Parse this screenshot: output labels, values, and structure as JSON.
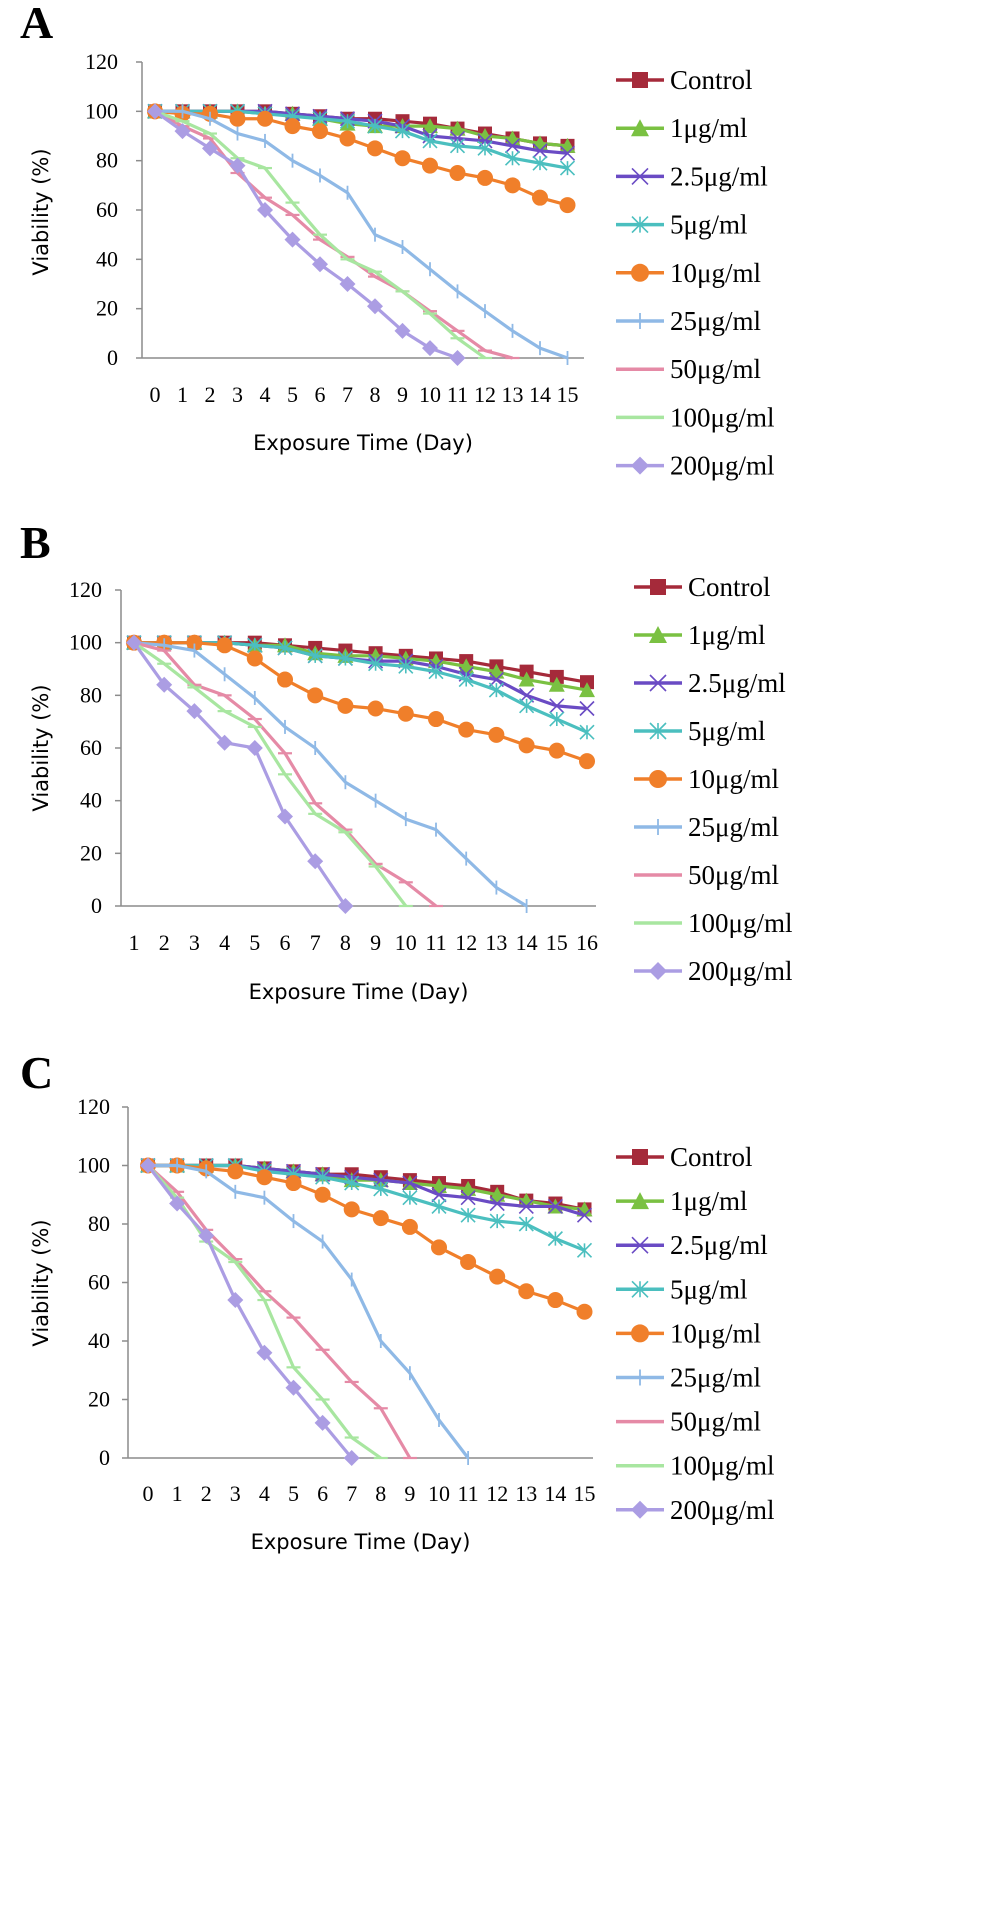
{
  "chart_data": [
    {
      "type": "line",
      "panel_label": "A",
      "xlabel": "Exposure Time (Day)",
      "ylabel": "Viability (%)",
      "ylim": [
        0,
        120
      ],
      "yticks": [
        "0",
        "20",
        "40",
        "60",
        "80",
        "100",
        "120"
      ],
      "xticks": [
        "0",
        "1",
        "2",
        "3",
        "4",
        "5",
        "6",
        "7",
        "8",
        "9",
        "10",
        "11",
        "12",
        "13",
        "14",
        "15"
      ],
      "x": [
        0,
        1,
        2,
        3,
        4,
        5,
        6,
        7,
        8,
        9,
        10,
        11,
        12,
        13,
        14,
        15
      ],
      "legend_position": "right",
      "series": [
        {
          "name": "Control",
          "color": "#a52a3a",
          "marker": "square",
          "values": [
            100,
            100,
            100,
            100,
            100,
            99,
            98,
            97,
            97,
            96,
            95,
            93,
            91,
            89,
            87,
            86
          ]
        },
        {
          "name": "1μg/ml",
          "color": "#7ac142",
          "marker": "triangle",
          "values": [
            100,
            100,
            100,
            100,
            99,
            99,
            97,
            95,
            94,
            94,
            94,
            93,
            90,
            89,
            87,
            86
          ]
        },
        {
          "name": "2.5μg/ml",
          "color": "#6a4bc4",
          "marker": "x",
          "values": [
            100,
            100,
            100,
            100,
            100,
            99,
            98,
            97,
            96,
            94,
            90,
            89,
            88,
            86,
            84,
            83
          ]
        },
        {
          "name": "5μg/ml",
          "color": "#4bbfbf",
          "marker": "star",
          "values": [
            100,
            100,
            100,
            100,
            99,
            98,
            97,
            96,
            94,
            92,
            88,
            86,
            85,
            81,
            79,
            77
          ]
        },
        {
          "name": "10μg/ml",
          "color": "#f07f2a",
          "marker": "circle",
          "values": [
            100,
            99,
            99,
            97,
            97,
            94,
            92,
            89,
            85,
            81,
            78,
            75,
            73,
            70,
            65,
            62
          ]
        },
        {
          "name": "25μg/ml",
          "color": "#8fb9e6",
          "marker": "plus",
          "values": [
            100,
            100,
            97,
            91,
            88,
            80,
            74,
            67,
            50,
            45,
            36,
            27,
            19,
            11,
            4,
            0
          ]
        },
        {
          "name": "50μg/ml",
          "color": "#e58aa6",
          "marker": "dash",
          "values": [
            100,
            94,
            89,
            75,
            65,
            58,
            48,
            41,
            33,
            27,
            19,
            11,
            3,
            0,
            null,
            null
          ]
        },
        {
          "name": "100μg/ml",
          "color": "#a8e6a0",
          "marker": "dash",
          "values": [
            100,
            96,
            91,
            81,
            77,
            63,
            50,
            40,
            35,
            27,
            18,
            8,
            0,
            null,
            null,
            null
          ]
        },
        {
          "name": "200μg/ml",
          "color": "#ab9de3",
          "marker": "diamond",
          "values": [
            100,
            92,
            85,
            78,
            60,
            48,
            38,
            30,
            21,
            11,
            4,
            0,
            null,
            null,
            null,
            null
          ]
        }
      ]
    },
    {
      "type": "line",
      "panel_label": "B",
      "xlabel": "Exposure Time (Day)",
      "ylabel": "Viability (%)",
      "ylim": [
        0,
        120
      ],
      "yticks": [
        "0",
        "20",
        "40",
        "60",
        "80",
        "100",
        "120"
      ],
      "xticks": [
        "1",
        "2",
        "3",
        "4",
        "5",
        "6",
        "7",
        "8",
        "9",
        "10",
        "11",
        "12",
        "13",
        "14",
        "15",
        "16"
      ],
      "x": [
        1,
        2,
        3,
        4,
        5,
        6,
        7,
        8,
        9,
        10,
        11,
        12,
        13,
        14,
        15,
        16
      ],
      "legend_position": "right",
      "series": [
        {
          "name": "Control",
          "color": "#a52a3a",
          "marker": "square",
          "values": [
            100,
            100,
            100,
            100,
            100,
            99,
            98,
            97,
            96,
            95,
            94,
            93,
            91,
            89,
            87,
            85
          ]
        },
        {
          "name": "1μg/ml",
          "color": "#7ac142",
          "marker": "triangle",
          "values": [
            100,
            100,
            100,
            100,
            99,
            99,
            96,
            95,
            95,
            94,
            93,
            91,
            89,
            86,
            84,
            82
          ]
        },
        {
          "name": "2.5μg/ml",
          "color": "#6a4bc4",
          "marker": "x",
          "values": [
            100,
            100,
            100,
            100,
            99,
            98,
            95,
            94,
            93,
            93,
            91,
            88,
            86,
            80,
            76,
            75
          ]
        },
        {
          "name": "5μg/ml",
          "color": "#4bbfbf",
          "marker": "star",
          "values": [
            100,
            100,
            100,
            100,
            99,
            98,
            95,
            94,
            92,
            91,
            89,
            86,
            82,
            76,
            71,
            66
          ]
        },
        {
          "name": "10μg/ml",
          "color": "#f07f2a",
          "marker": "circle",
          "values": [
            100,
            100,
            100,
            99,
            94,
            86,
            80,
            76,
            75,
            73,
            71,
            67,
            65,
            61,
            59,
            55
          ]
        },
        {
          "name": "25μg/ml",
          "color": "#8fb9e6",
          "marker": "plus",
          "values": [
            100,
            99,
            97,
            88,
            79,
            68,
            60,
            47,
            40,
            33,
            29,
            18,
            7,
            0,
            null,
            null
          ]
        },
        {
          "name": "50μg/ml",
          "color": "#e58aa6",
          "marker": "dash",
          "values": [
            100,
            97,
            84,
            80,
            71,
            58,
            39,
            29,
            16,
            9,
            0,
            null,
            null,
            null,
            null,
            null
          ]
        },
        {
          "name": "100μg/ml",
          "color": "#a8e6a0",
          "marker": "dash",
          "values": [
            100,
            92,
            83,
            74,
            68,
            50,
            35,
            28,
            15,
            0,
            null,
            null,
            null,
            null,
            null,
            null
          ]
        },
        {
          "name": "200μg/ml",
          "color": "#ab9de3",
          "marker": "diamond",
          "values": [
            100,
            84,
            74,
            62,
            60,
            34,
            17,
            0,
            null,
            null,
            null,
            null,
            null,
            null,
            null,
            null
          ]
        }
      ]
    },
    {
      "type": "line",
      "panel_label": "C",
      "xlabel": "Exposure Time (Day)",
      "ylabel": "Viability (%)",
      "ylim": [
        0,
        120
      ],
      "yticks": [
        "0",
        "20",
        "40",
        "60",
        "80",
        "100",
        "120"
      ],
      "xticks": [
        "0",
        "1",
        "2",
        "3",
        "4",
        "5",
        "6",
        "7",
        "8",
        "9",
        "10",
        "11",
        "12",
        "13",
        "14",
        "15"
      ],
      "x": [
        0,
        1,
        2,
        3,
        4,
        5,
        6,
        7,
        8,
        9,
        10,
        11,
        12,
        13,
        14,
        15
      ],
      "legend_position": "right",
      "series": [
        {
          "name": "Control",
          "color": "#a52a3a",
          "marker": "square",
          "values": [
            100,
            100,
            100,
            100,
            99,
            98,
            97,
            97,
            96,
            95,
            94,
            93,
            91,
            88,
            87,
            85
          ]
        },
        {
          "name": "1μg/ml",
          "color": "#7ac142",
          "marker": "triangle",
          "values": [
            100,
            100,
            100,
            100,
            99,
            98,
            97,
            95,
            95,
            94,
            93,
            92,
            90,
            88,
            86,
            85
          ]
        },
        {
          "name": "2.5μg/ml",
          "color": "#6a4bc4",
          "marker": "x",
          "values": [
            100,
            100,
            100,
            100,
            99,
            98,
            97,
            96,
            95,
            94,
            90,
            89,
            87,
            86,
            86,
            83
          ]
        },
        {
          "name": "5μg/ml",
          "color": "#4bbfbf",
          "marker": "star",
          "values": [
            100,
            100,
            100,
            100,
            98,
            97,
            96,
            94,
            92,
            89,
            86,
            83,
            81,
            80,
            75,
            71
          ]
        },
        {
          "name": "10μg/ml",
          "color": "#f07f2a",
          "marker": "circle",
          "values": [
            100,
            100,
            99,
            98,
            96,
            94,
            90,
            85,
            82,
            79,
            72,
            67,
            62,
            57,
            54,
            50
          ]
        },
        {
          "name": "25μg/ml",
          "color": "#8fb9e6",
          "marker": "plus",
          "values": [
            100,
            100,
            98,
            91,
            89,
            81,
            74,
            61,
            40,
            29,
            13,
            0,
            null,
            null,
            null,
            null
          ]
        },
        {
          "name": "50μg/ml",
          "color": "#e58aa6",
          "marker": "dash",
          "values": [
            100,
            91,
            78,
            68,
            57,
            48,
            37,
            26,
            17,
            0,
            null,
            null,
            null,
            null,
            null,
            null
          ]
        },
        {
          "name": "100μg/ml",
          "color": "#a8e6a0",
          "marker": "dash",
          "values": [
            100,
            89,
            74,
            67,
            54,
            31,
            20,
            7,
            0,
            null,
            null,
            null,
            null,
            null,
            null,
            null
          ]
        },
        {
          "name": "200μg/ml",
          "color": "#ab9de3",
          "marker": "diamond",
          "values": [
            100,
            87,
            76,
            54,
            36,
            24,
            12,
            0,
            null,
            null,
            null,
            null,
            null,
            null,
            null,
            null
          ]
        }
      ]
    }
  ]
}
